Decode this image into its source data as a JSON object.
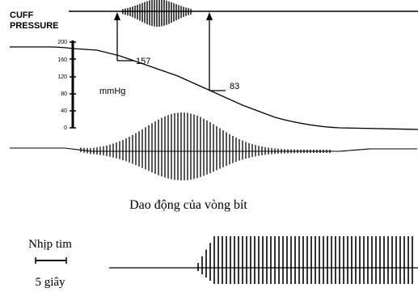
{
  "header": {
    "line1": "CUFF",
    "line2": "PRESSURE"
  },
  "axis": {
    "ticks": [
      "200",
      "160",
      "120",
      "80",
      "40",
      "0"
    ],
    "unit": "mmHg"
  },
  "readings": {
    "systolic": "157",
    "diastolic": "83"
  },
  "captions": {
    "oscillation": "Dao động của vòng bít",
    "heart_rate": "Nhịp tim",
    "scale": "5 giây"
  },
  "colors": {
    "ink": "#000000",
    "background": "#ffffff"
  }
}
